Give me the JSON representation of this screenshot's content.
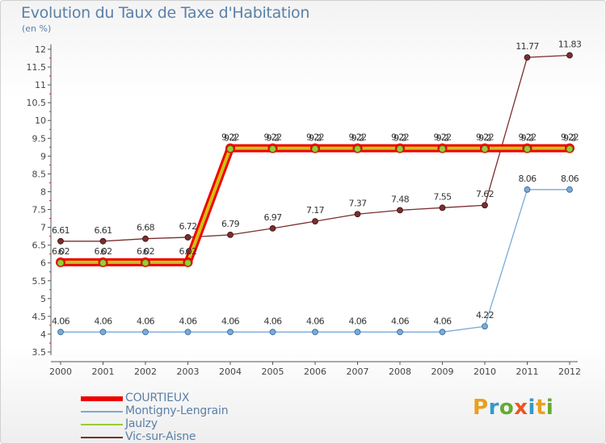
{
  "title": "Evolution du Taux de Taxe d'Habitation",
  "unit": "(en %)",
  "logo": "Proxiti",
  "chart_data": {
    "type": "line",
    "title": "Evolution du Taux de Taxe d'Habitation",
    "ylabel": "(en %)",
    "ylim": [
      3.5,
      12
    ],
    "yticks": [
      "3.5",
      "4",
      "4.5",
      "5",
      "5.5",
      "6",
      "6.5",
      "7",
      "7.5",
      "8",
      "8.5",
      "9",
      "9.5",
      "10",
      "10.5",
      "11",
      "11.5",
      "12"
    ],
    "x": [
      "2000",
      "2001",
      "2002",
      "2003",
      "2004",
      "2005",
      "2006",
      "2007",
      "2008",
      "2009",
      "2010",
      "2011",
      "2012"
    ],
    "grid": false,
    "legend_position": "bottom-left",
    "series": [
      {
        "name": "COURTIEUX",
        "color": "#ee0000",
        "values": [
          6.02,
          6.02,
          6.02,
          6.02,
          9.22,
          9.22,
          9.22,
          9.22,
          9.22,
          9.22,
          9.22,
          9.22,
          9.22
        ],
        "labels": [
          "6.02",
          "6.02",
          "6.02",
          "6.02",
          "9.22",
          "9.22",
          "9.22",
          "9.22",
          "9.22",
          "9.22",
          "9.22",
          "9.22",
          "9.22"
        ]
      },
      {
        "name": "Montigny-Lengrain",
        "color": "#7aaad6",
        "values": [
          4.06,
          4.06,
          4.06,
          4.06,
          4.06,
          4.06,
          4.06,
          4.06,
          4.06,
          4.06,
          4.22,
          8.06,
          8.06
        ],
        "labels": [
          "4.06",
          "4.06",
          "4.06",
          "4.06",
          "4.06",
          "4.06",
          "4.06",
          "4.06",
          "4.06",
          "4.06",
          "4.22",
          "8.06",
          "8.06"
        ]
      },
      {
        "name": "Jaulzy",
        "color": "#99cc33",
        "values": [
          6,
          6,
          6,
          6,
          9.2,
          9.2,
          9.2,
          9.2,
          9.2,
          9.2,
          9.2,
          9.2,
          9.2
        ],
        "labels": [
          "6",
          "6",
          "6",
          "6",
          "9.2",
          "9.2",
          "9.2",
          "9.2",
          "9.2",
          "9.2",
          "9.2",
          "9.2",
          "9.2"
        ]
      },
      {
        "name": "Vic-sur-Aisne",
        "color": "#7a2e2e",
        "values": [
          6.61,
          6.61,
          6.68,
          6.72,
          6.79,
          6.97,
          7.17,
          7.37,
          7.48,
          7.55,
          7.62,
          11.77,
          11.83
        ],
        "labels": [
          "6.61",
          "6.61",
          "6.68",
          "6.72",
          "6.79",
          "6.97",
          "7.17",
          "7.37",
          "7.48",
          "7.55",
          "7.62",
          "11.77",
          "11.83"
        ]
      }
    ]
  }
}
